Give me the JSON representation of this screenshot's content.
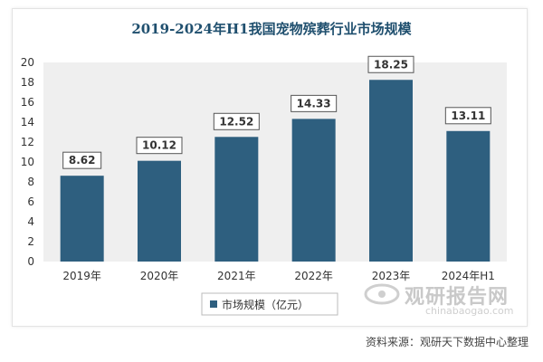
{
  "chart_data": {
    "type": "bar",
    "title": "2019-2024年H1我国宠物殡葬行业市场规模",
    "categories": [
      "2019年",
      "2020年",
      "2021年",
      "2022年",
      "2023年",
      "2024年H1"
    ],
    "series": [
      {
        "name": "市场规模（亿元）",
        "values": [
          8.62,
          10.12,
          12.52,
          14.33,
          18.25,
          13.11
        ]
      }
    ],
    "data_labels": [
      "8.62",
      "10.12",
      "12.52",
      "14.33",
      "18.25",
      "13.11"
    ],
    "y_ticks": [
      "0",
      "2",
      "4",
      "6",
      "8",
      "10",
      "12",
      "14",
      "16",
      "18",
      "20"
    ],
    "ylim": [
      0,
      20
    ],
    "xlabel": "",
    "ylabel": "",
    "grid": false,
    "legend_position": "bottom",
    "bar_color": "#2e5f7f",
    "plot_background": "#efefef"
  },
  "watermark": {
    "name_cn": "观研报告网",
    "name_en": "chinabaogao.com"
  },
  "source_text": "资料来源：观研天下数据中心整理"
}
